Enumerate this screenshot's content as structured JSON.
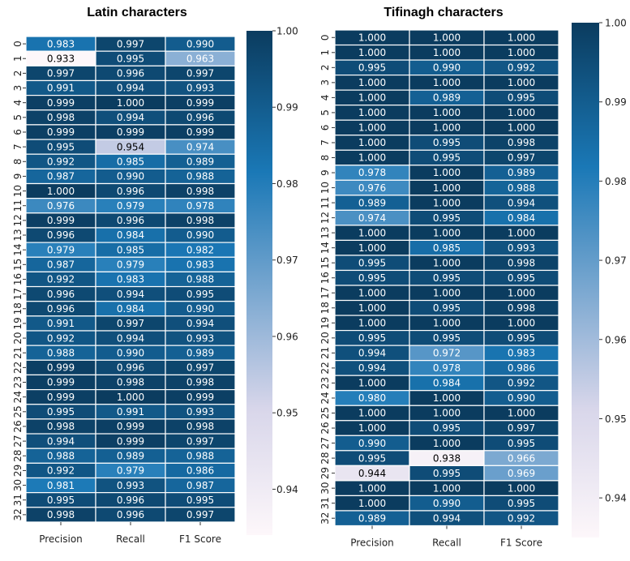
{
  "colors": {
    "low": "#fdf7fa",
    "mid_low": "#d8d6ea",
    "mid": "#1a78b6",
    "high": "#0b3c5f",
    "grid_line": "#ffffff",
    "text_light": "#ffffff",
    "text_dark": "#000000"
  },
  "chart_data": [
    {
      "type": "heatmap",
      "title": "Latin characters",
      "columns": [
        "Precision",
        "Recall",
        "F1 Score"
      ],
      "rows": [
        "0",
        "1",
        "2",
        "3",
        "4",
        "5",
        "6",
        "7",
        "8",
        "9",
        "10",
        "11",
        "12",
        "13",
        "14",
        "15",
        "16",
        "17",
        "18",
        "19",
        "20",
        "21",
        "22",
        "23",
        "24",
        "25",
        "26",
        "27",
        "28",
        "29",
        "30",
        "31",
        "32"
      ],
      "values": [
        [
          0.983,
          0.997,
          0.99
        ],
        [
          0.933,
          0.995,
          0.963
        ],
        [
          0.997,
          0.996,
          0.997
        ],
        [
          0.991,
          0.994,
          0.993
        ],
        [
          0.999,
          1.0,
          0.999
        ],
        [
          0.998,
          0.994,
          0.996
        ],
        [
          0.999,
          0.999,
          0.999
        ],
        [
          0.995,
          0.954,
          0.974
        ],
        [
          0.992,
          0.985,
          0.989
        ],
        [
          0.987,
          0.99,
          0.988
        ],
        [
          1.0,
          0.996,
          0.998
        ],
        [
          0.976,
          0.979,
          0.978
        ],
        [
          0.999,
          0.996,
          0.998
        ],
        [
          0.996,
          0.984,
          0.99
        ],
        [
          0.979,
          0.985,
          0.982
        ],
        [
          0.987,
          0.979,
          0.983
        ],
        [
          0.992,
          0.983,
          0.988
        ],
        [
          0.996,
          0.994,
          0.995
        ],
        [
          0.996,
          0.984,
          0.99
        ],
        [
          0.991,
          0.997,
          0.994
        ],
        [
          0.992,
          0.994,
          0.993
        ],
        [
          0.988,
          0.99,
          0.989
        ],
        [
          0.999,
          0.996,
          0.997
        ],
        [
          0.999,
          0.998,
          0.998
        ],
        [
          0.999,
          1.0,
          0.999
        ],
        [
          0.995,
          0.991,
          0.993
        ],
        [
          0.998,
          0.999,
          0.998
        ],
        [
          0.994,
          0.999,
          0.997
        ],
        [
          0.988,
          0.989,
          0.988
        ],
        [
          0.992,
          0.979,
          0.986
        ],
        [
          0.981,
          0.993,
          0.987
        ],
        [
          0.995,
          0.996,
          0.995
        ],
        [
          0.998,
          0.996,
          0.997
        ]
      ],
      "colorbar": {
        "range": [
          0.934,
          1.0
        ],
        "ticks": [
          "0.94",
          "0.95",
          "0.96",
          "0.97",
          "0.98",
          "0.99",
          "1.00"
        ]
      }
    },
    {
      "type": "heatmap",
      "title": "Tifinagh characters",
      "columns": [
        "Precision",
        "Recall",
        "F1 Score"
      ],
      "rows": [
        "0",
        "1",
        "2",
        "3",
        "4",
        "5",
        "6",
        "7",
        "8",
        "9",
        "10",
        "11",
        "12",
        "13",
        "14",
        "15",
        "16",
        "17",
        "18",
        "19",
        "20",
        "21",
        "22",
        "23",
        "24",
        "25",
        "26",
        "27",
        "28",
        "29",
        "30",
        "31",
        "32"
      ],
      "values": [
        [
          1.0,
          1.0,
          1.0
        ],
        [
          1.0,
          1.0,
          1.0
        ],
        [
          0.995,
          0.99,
          0.992
        ],
        [
          1.0,
          1.0,
          1.0
        ],
        [
          1.0,
          0.989,
          0.995
        ],
        [
          1.0,
          1.0,
          1.0
        ],
        [
          1.0,
          1.0,
          1.0
        ],
        [
          1.0,
          0.995,
          0.998
        ],
        [
          1.0,
          0.995,
          0.997
        ],
        [
          0.978,
          1.0,
          0.989
        ],
        [
          0.976,
          1.0,
          0.988
        ],
        [
          0.989,
          1.0,
          0.994
        ],
        [
          0.974,
          0.995,
          0.984
        ],
        [
          1.0,
          1.0,
          1.0
        ],
        [
          1.0,
          0.985,
          0.993
        ],
        [
          0.995,
          1.0,
          0.998
        ],
        [
          0.995,
          0.995,
          0.995
        ],
        [
          1.0,
          1.0,
          1.0
        ],
        [
          1.0,
          0.995,
          0.998
        ],
        [
          1.0,
          1.0,
          1.0
        ],
        [
          0.995,
          0.995,
          0.995
        ],
        [
          0.994,
          0.972,
          0.983
        ],
        [
          0.994,
          0.978,
          0.986
        ],
        [
          1.0,
          0.984,
          0.992
        ],
        [
          0.98,
          1.0,
          0.99
        ],
        [
          1.0,
          1.0,
          1.0
        ],
        [
          1.0,
          0.995,
          0.997
        ],
        [
          0.99,
          1.0,
          0.995
        ],
        [
          0.995,
          0.938,
          0.966
        ],
        [
          0.944,
          0.995,
          0.969
        ],
        [
          1.0,
          1.0,
          1.0
        ],
        [
          1.0,
          0.99,
          0.995
        ],
        [
          0.989,
          0.994,
          0.992
        ]
      ],
      "colorbar": {
        "range": [
          0.935,
          1.0
        ],
        "ticks": [
          "0.94",
          "0.95",
          "0.96",
          "0.97",
          "0.98",
          "0.99",
          "1.00"
        ]
      }
    }
  ]
}
